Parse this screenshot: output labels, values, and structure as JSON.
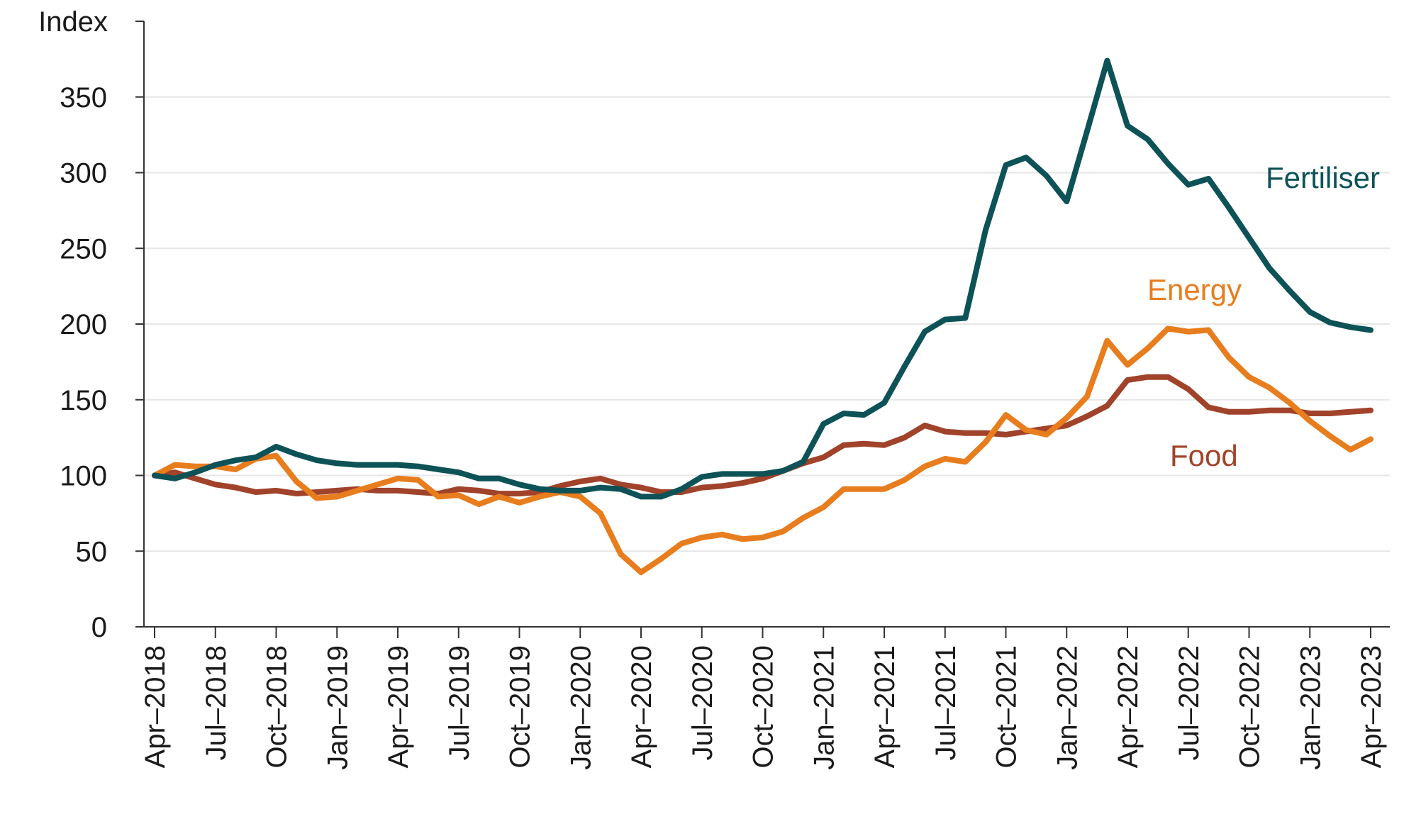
{
  "chart_data": {
    "type": "line",
    "ylabel": "Index",
    "ylim": [
      0,
      400
    ],
    "yticks": [
      0,
      50,
      100,
      150,
      200,
      250,
      300,
      350
    ],
    "grid": "horizontal",
    "x": [
      "Apr–2018",
      "May–2018",
      "Jun–2018",
      "Jul–2018",
      "Aug–2018",
      "Sep–2018",
      "Oct–2018",
      "Nov–2018",
      "Dec–2018",
      "Jan–2019",
      "Feb–2019",
      "Mar–2019",
      "Apr–2019",
      "May–2019",
      "Jun–2019",
      "Jul–2019",
      "Aug–2019",
      "Sep–2019",
      "Oct–2019",
      "Nov–2019",
      "Dec–2019",
      "Jan–2020",
      "Feb–2020",
      "Mar–2020",
      "Apr–2020",
      "May–2020",
      "Jun–2020",
      "Jul–2020",
      "Aug–2020",
      "Sep–2020",
      "Oct–2020",
      "Nov–2020",
      "Dec–2020",
      "Jan–2021",
      "Feb–2021",
      "Mar–2021",
      "Apr–2021",
      "May–2021",
      "Jun–2021",
      "Jul–2021",
      "Aug–2021",
      "Sep–2021",
      "Oct–2021",
      "Nov–2021",
      "Dec–2021",
      "Jan–2022",
      "Feb–2022",
      "Mar–2022",
      "Apr–2022",
      "May–2022",
      "Jun–2022",
      "Jul–2022",
      "Aug–2022",
      "Sep–2022",
      "Oct–2022",
      "Nov–2022",
      "Dec–2022",
      "Jan–2023",
      "Feb–2023",
      "Mar–2023",
      "Apr–2023"
    ],
    "xtick_labels": [
      "Apr–2018",
      "Jul–2018",
      "Oct–2018",
      "Jan–2019",
      "Apr–2019",
      "Jul–2019",
      "Oct–2019",
      "Jan–2020",
      "Apr–2020",
      "Jul–2020",
      "Oct–2020",
      "Jan–2021",
      "Apr–2021",
      "Jul–2021",
      "Oct–2021",
      "Jan–2022",
      "Apr–2022",
      "Jul–2022",
      "Oct–2022",
      "Jan–2023",
      "Apr–2023"
    ],
    "series": [
      {
        "name": "Fertiliser",
        "color": "#0d5257",
        "values": [
          100,
          98,
          102,
          107,
          110,
          112,
          119,
          114,
          110,
          108,
          107,
          107,
          107,
          106,
          104,
          102,
          98,
          98,
          94,
          91,
          90,
          90,
          92,
          91,
          86,
          86,
          91,
          99,
          101,
          101,
          101,
          103,
          109,
          134,
          141,
          140,
          148,
          172,
          195,
          203,
          204,
          262,
          305,
          310,
          298,
          281,
          327,
          374,
          331,
          322,
          306,
          292,
          296,
          277,
          257,
          237,
          222,
          208,
          201,
          198,
          196
        ]
      },
      {
        "name": "Energy",
        "color": "#e87d1e",
        "values": [
          100,
          107,
          106,
          106,
          104,
          111,
          113,
          96,
          85,
          86,
          90,
          94,
          98,
          97,
          86,
          87,
          81,
          86,
          82,
          86,
          89,
          86,
          75,
          48,
          36,
          45,
          55,
          59,
          61,
          58,
          59,
          63,
          72,
          79,
          91,
          91,
          91,
          97,
          106,
          111,
          109,
          122,
          140,
          130,
          127,
          138,
          152,
          189,
          173,
          184,
          197,
          195,
          196,
          178,
          165,
          158,
          148,
          136,
          126,
          117,
          124
        ]
      },
      {
        "name": "Food",
        "color": "#a0432a",
        "values": [
          100,
          102,
          98,
          94,
          92,
          89,
          90,
          88,
          89,
          90,
          91,
          90,
          90,
          89,
          88,
          91,
          90,
          88,
          88,
          89,
          93,
          96,
          98,
          94,
          92,
          89,
          89,
          92,
          93,
          95,
          98,
          103,
          108,
          112,
          120,
          121,
          120,
          125,
          133,
          129,
          128,
          128,
          127,
          129,
          131,
          133,
          139,
          146,
          163,
          165,
          165,
          157,
          145,
          142,
          142,
          143,
          143,
          141,
          141,
          142,
          143
        ]
      }
    ]
  }
}
